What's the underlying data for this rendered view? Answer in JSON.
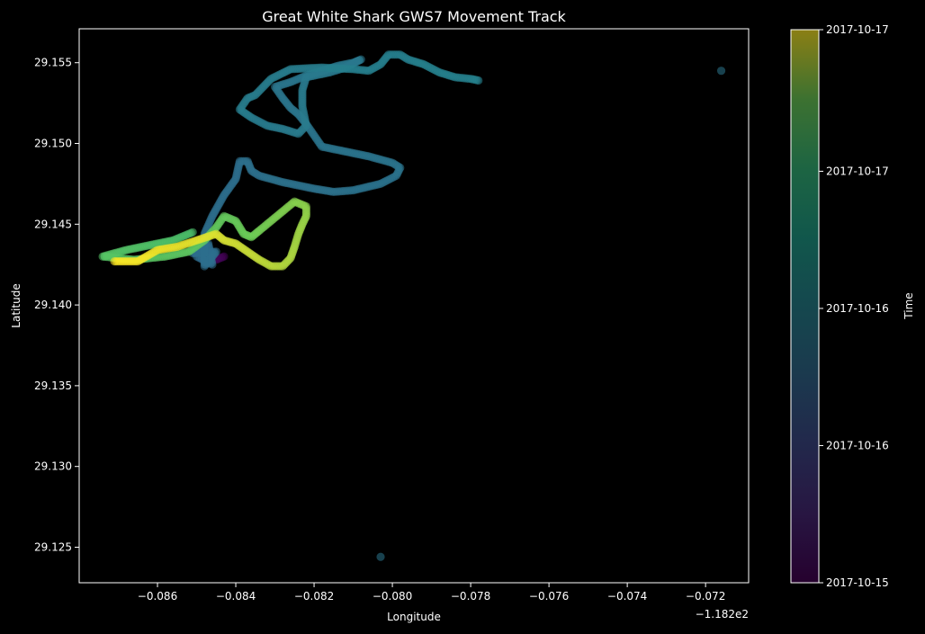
{
  "chart_data": {
    "type": "scatter",
    "title": "Great White Shark GWS7 Movement Track",
    "xlabel": "Longitude",
    "ylabel": "Latitude",
    "x_offset_label": "−1.182e2",
    "xlim": [
      -0.088,
      -0.0709
    ],
    "ylim": [
      29.1228,
      29.1571
    ],
    "x_ticks": [
      -0.086,
      -0.084,
      -0.082,
      -0.08,
      -0.078,
      -0.076,
      -0.074,
      -0.072
    ],
    "x_tick_labels": [
      "−0.086",
      "−0.084",
      "−0.082",
      "−0.080",
      "−0.078",
      "−0.076",
      "−0.074",
      "−0.072"
    ],
    "y_ticks": [
      29.125,
      29.13,
      29.135,
      29.14,
      29.145,
      29.15,
      29.155
    ],
    "y_tick_labels": [
      "29.125",
      "29.130",
      "29.135",
      "29.140",
      "29.145",
      "29.150",
      "29.155"
    ],
    "grid": false,
    "colorbar": {
      "label": "Time",
      "colormap": "viridis",
      "tick_labels": [
        "2017-10-15",
        "2017-10-16",
        "2017-10-16",
        "2017-10-17",
        "2017-10-17"
      ],
      "tick_fractions": [
        0.0,
        0.248,
        0.496,
        0.744,
        1.0
      ]
    },
    "colors": {
      "background": "#000000",
      "axes": "#ffffff",
      "early": "#440154",
      "middle": "#2a7898",
      "late": "#f2e61c"
    },
    "track_segments": [
      {
        "time": [
          0.0,
          0.04
        ],
        "points": [
          [
            -0.0843,
            29.143
          ],
          [
            -0.0845,
            29.1428
          ],
          [
            -0.0847,
            29.143
          ]
        ]
      },
      {
        "time": [
          0.4,
          0.5
        ],
        "points": [
          [
            -0.085,
            29.143
          ],
          [
            -0.0846,
            29.1425
          ],
          [
            -0.0847,
            29.1438
          ],
          [
            -0.0851,
            29.1432
          ],
          [
            -0.0845,
            29.1433
          ],
          [
            -0.0848,
            29.1424
          ],
          [
            -0.0848,
            29.1444
          ],
          [
            -0.0846,
            29.1455
          ],
          [
            -0.0843,
            29.1468
          ],
          [
            -0.084,
            29.1478
          ],
          [
            -0.0839,
            29.1489
          ],
          [
            -0.0837,
            29.1489
          ],
          [
            -0.0836,
            29.1483
          ],
          [
            -0.0834,
            29.148
          ],
          [
            -0.0828,
            29.1476
          ],
          [
            -0.082,
            29.1472
          ],
          [
            -0.0815,
            29.147
          ],
          [
            -0.081,
            29.1471
          ],
          [
            -0.0803,
            29.1475
          ],
          [
            -0.0799,
            29.148
          ],
          [
            -0.0798,
            29.1485
          ],
          [
            -0.08,
            29.1488
          ],
          [
            -0.0806,
            29.1492
          ],
          [
            -0.0812,
            29.1495
          ],
          [
            -0.0818,
            29.1498
          ],
          [
            -0.082,
            29.1505
          ],
          [
            -0.0822,
            29.1512
          ],
          [
            -0.0824,
            29.1518
          ],
          [
            -0.0826,
            29.1522
          ],
          [
            -0.0828,
            29.1528
          ],
          [
            -0.083,
            29.1535
          ],
          [
            -0.0826,
            29.1538
          ],
          [
            -0.0822,
            29.1542
          ],
          [
            -0.0818,
            29.1545
          ],
          [
            -0.0814,
            29.1548
          ],
          [
            -0.081,
            29.155
          ],
          [
            -0.0808,
            29.1552
          ],
          [
            -0.0812,
            29.1547
          ],
          [
            -0.0816,
            29.1544
          ],
          [
            -0.082,
            29.1542
          ],
          [
            -0.0822,
            29.1541
          ],
          [
            -0.0823,
            29.1533
          ],
          [
            -0.0823,
            29.1523
          ],
          [
            -0.0822,
            29.1511
          ],
          [
            -0.0824,
            29.1506
          ],
          [
            -0.0828,
            29.1509
          ],
          [
            -0.0832,
            29.1511
          ],
          [
            -0.0836,
            29.1516
          ],
          [
            -0.0839,
            29.1521
          ],
          [
            -0.0837,
            29.1528
          ],
          [
            -0.0835,
            29.153
          ],
          [
            -0.0831,
            29.154
          ],
          [
            -0.0826,
            29.1546
          ],
          [
            -0.0818,
            29.1547
          ],
          [
            -0.081,
            29.1546
          ],
          [
            -0.0806,
            29.1545
          ],
          [
            -0.0803,
            29.1549
          ],
          [
            -0.0801,
            29.1555
          ],
          [
            -0.0798,
            29.1555
          ],
          [
            -0.0796,
            29.1552
          ],
          [
            -0.0792,
            29.1549
          ],
          [
            -0.0788,
            29.1544
          ],
          [
            -0.0784,
            29.1541
          ],
          [
            -0.078,
            29.154
          ],
          [
            -0.0778,
            29.1539
          ]
        ]
      },
      {
        "time": [
          0.8,
          1.0
        ],
        "points": [
          [
            -0.0851,
            29.1445
          ],
          [
            -0.0856,
            29.144
          ],
          [
            -0.0862,
            29.1437
          ],
          [
            -0.0868,
            29.1434
          ],
          [
            -0.0874,
            29.143
          ],
          [
            -0.0866,
            29.1428
          ],
          [
            -0.0858,
            29.143
          ],
          [
            -0.0852,
            29.1433
          ],
          [
            -0.0848,
            29.144
          ],
          [
            -0.0845,
            29.1448
          ],
          [
            -0.0843,
            29.1455
          ],
          [
            -0.084,
            29.1452
          ],
          [
            -0.0838,
            29.1444
          ],
          [
            -0.0836,
            29.1442
          ],
          [
            -0.0834,
            29.1446
          ],
          [
            -0.0831,
            29.1452
          ],
          [
            -0.0828,
            29.1458
          ],
          [
            -0.0825,
            29.1464
          ],
          [
            -0.0822,
            29.1461
          ],
          [
            -0.0822,
            29.1455
          ],
          [
            -0.0823,
            29.145
          ],
          [
            -0.0824,
            29.1444
          ],
          [
            -0.0825,
            29.1436
          ],
          [
            -0.0826,
            29.1429
          ],
          [
            -0.0828,
            29.1424
          ],
          [
            -0.0831,
            29.1424
          ],
          [
            -0.0834,
            29.1428
          ],
          [
            -0.0837,
            29.1433
          ],
          [
            -0.084,
            29.1438
          ],
          [
            -0.0843,
            29.144
          ],
          [
            -0.0845,
            29.1444
          ],
          [
            -0.085,
            29.144
          ],
          [
            -0.0855,
            29.1436
          ],
          [
            -0.086,
            29.1434
          ],
          [
            -0.0865,
            29.1427
          ],
          [
            -0.0871,
            29.1427
          ]
        ]
      }
    ],
    "isolated_points": [
      {
        "x": -0.0716,
        "y": 29.1545,
        "time": 0.44
      },
      {
        "x": -0.0803,
        "y": 29.1244,
        "time": 0.44
      }
    ]
  }
}
